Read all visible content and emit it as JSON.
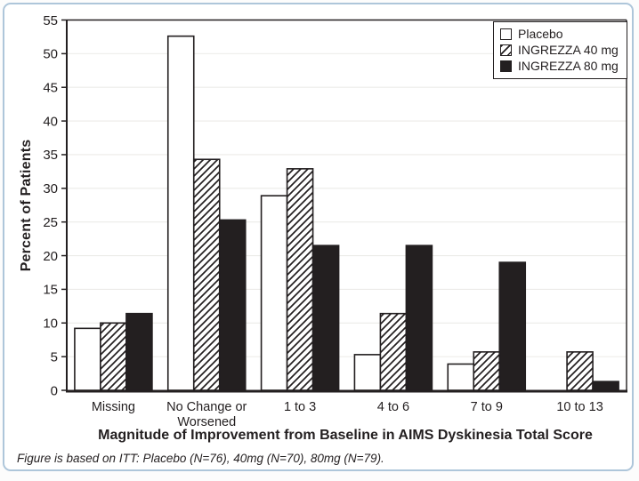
{
  "figure": {
    "frame_border_color": "#aec6da",
    "background_color": "#ffffff"
  },
  "footnote": "Figure is based on ITT: Placebo (N=76), 40mg (N=70), 80mg (N=79).",
  "chart_data": {
    "type": "bar",
    "title": "",
    "xlabel": "Magnitude of Improvement from Baseline in AIMS Dyskinesia Total Score",
    "ylabel": "Percent of Patients",
    "ylim": [
      0,
      55
    ],
    "yticks": [
      0,
      5,
      10,
      15,
      20,
      25,
      30,
      35,
      40,
      45,
      50,
      55
    ],
    "grid": true,
    "legend_position": "top-right",
    "categories": [
      "Missing",
      "No Change or Worsened",
      "1 to 3",
      "4 to 6",
      "7 to 9",
      "10 to 13"
    ],
    "series": [
      {
        "name": "Placebo",
        "style": "white",
        "values": [
          9.2,
          52.6,
          28.9,
          5.3,
          3.9,
          0
        ]
      },
      {
        "name": "INGREZZA 40 mg",
        "style": "hatched",
        "values": [
          10.0,
          34.3,
          32.9,
          11.4,
          5.7,
          5.7
        ]
      },
      {
        "name": "INGREZZA 80 mg",
        "style": "black",
        "values": [
          11.4,
          25.3,
          21.5,
          21.5,
          19.0,
          1.3
        ]
      }
    ],
    "colors": {
      "ink": "#231f20",
      "bar_white": "#ffffff",
      "bar_black": "#231f20",
      "grid": "#ecebe8"
    }
  }
}
